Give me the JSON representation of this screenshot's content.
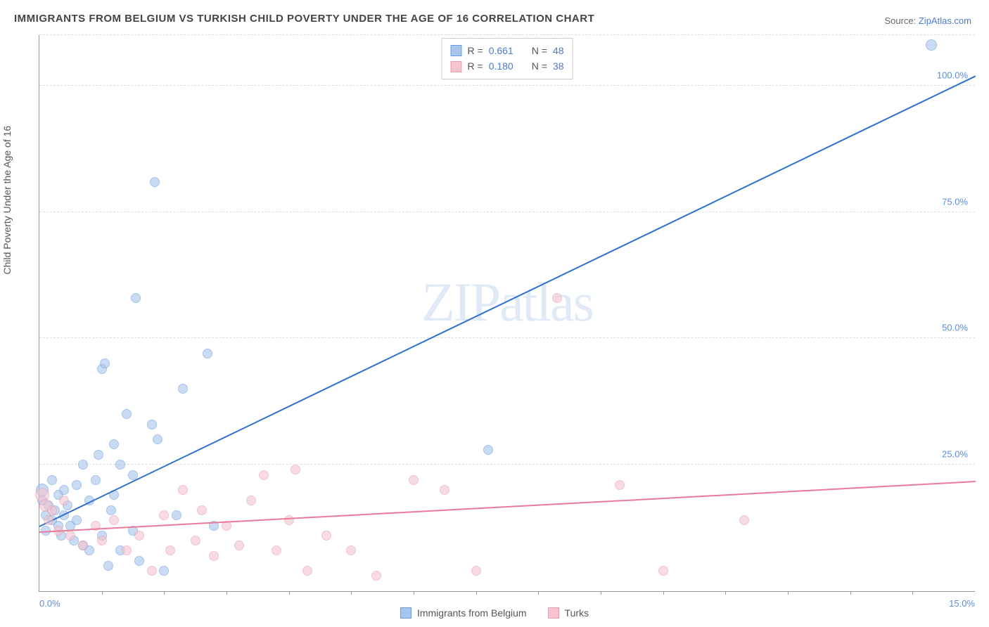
{
  "title": "IMMIGRANTS FROM BELGIUM VS TURKISH CHILD POVERTY UNDER THE AGE OF 16 CORRELATION CHART",
  "source_label": "Source: ",
  "source_name": "ZipAtlas.com",
  "ylabel": "Child Poverty Under the Age of 16",
  "watermark": "ZIPatlas",
  "chart": {
    "type": "scatter",
    "xlim": [
      0,
      15
    ],
    "ylim": [
      0,
      110
    ],
    "x_ticks_minor": [
      1,
      2,
      3,
      4,
      5,
      6,
      7,
      8,
      9,
      10,
      11,
      12,
      13,
      14
    ],
    "x_tick_labels": [
      {
        "pos": 0,
        "label": "0.0%"
      },
      {
        "pos": 15,
        "label": "15.0%"
      }
    ],
    "y_gridlines": [
      25,
      50,
      75,
      100,
      110
    ],
    "y_tick_labels": [
      {
        "pos": 25,
        "label": "25.0%"
      },
      {
        "pos": 50,
        "label": "50.0%"
      },
      {
        "pos": 75,
        "label": "75.0%"
      },
      {
        "pos": 100,
        "label": "100.0%"
      }
    ],
    "background_color": "#ffffff",
    "grid_color": "#dddddd",
    "axis_color": "#999999",
    "tick_label_color": "#5b8dd6"
  },
  "series": [
    {
      "name": "Immigrants from Belgium",
      "marker_fill": "#a8c5ec",
      "marker_stroke": "#6a9bd8",
      "marker_opacity": 0.6,
      "line_color": "#2e6fd0",
      "R": "0.661",
      "N": "48",
      "trend": {
        "x1": 0,
        "y1": 13,
        "x2": 15,
        "y2": 102
      },
      "points": [
        {
          "x": 0.05,
          "y": 18,
          "r": 7
        },
        {
          "x": 0.05,
          "y": 20,
          "r": 9
        },
        {
          "x": 0.1,
          "y": 15,
          "r": 7
        },
        {
          "x": 0.1,
          "y": 12,
          "r": 7
        },
        {
          "x": 0.15,
          "y": 17,
          "r": 7
        },
        {
          "x": 0.2,
          "y": 14,
          "r": 7
        },
        {
          "x": 0.2,
          "y": 22,
          "r": 7
        },
        {
          "x": 0.25,
          "y": 16,
          "r": 7
        },
        {
          "x": 0.3,
          "y": 13,
          "r": 7
        },
        {
          "x": 0.3,
          "y": 19,
          "r": 7
        },
        {
          "x": 0.35,
          "y": 11,
          "r": 7
        },
        {
          "x": 0.4,
          "y": 15,
          "r": 7
        },
        {
          "x": 0.4,
          "y": 20,
          "r": 7
        },
        {
          "x": 0.45,
          "y": 17,
          "r": 7
        },
        {
          "x": 0.5,
          "y": 13,
          "r": 7
        },
        {
          "x": 0.55,
          "y": 10,
          "r": 7
        },
        {
          "x": 0.6,
          "y": 21,
          "r": 7
        },
        {
          "x": 0.6,
          "y": 14,
          "r": 7
        },
        {
          "x": 0.7,
          "y": 9,
          "r": 7
        },
        {
          "x": 0.7,
          "y": 25,
          "r": 7
        },
        {
          "x": 0.8,
          "y": 18,
          "r": 7
        },
        {
          "x": 0.8,
          "y": 8,
          "r": 7
        },
        {
          "x": 0.9,
          "y": 22,
          "r": 7
        },
        {
          "x": 0.95,
          "y": 27,
          "r": 7
        },
        {
          "x": 1.0,
          "y": 11,
          "r": 7
        },
        {
          "x": 1.0,
          "y": 44,
          "r": 7
        },
        {
          "x": 1.05,
          "y": 45,
          "r": 7
        },
        {
          "x": 1.1,
          "y": 5,
          "r": 7
        },
        {
          "x": 1.15,
          "y": 16,
          "r": 7
        },
        {
          "x": 1.2,
          "y": 29,
          "r": 7
        },
        {
          "x": 1.2,
          "y": 19,
          "r": 7
        },
        {
          "x": 1.3,
          "y": 8,
          "r": 7
        },
        {
          "x": 1.3,
          "y": 25,
          "r": 7
        },
        {
          "x": 1.4,
          "y": 35,
          "r": 7
        },
        {
          "x": 1.5,
          "y": 12,
          "r": 7
        },
        {
          "x": 1.5,
          "y": 23,
          "r": 7
        },
        {
          "x": 1.55,
          "y": 58,
          "r": 7
        },
        {
          "x": 1.6,
          "y": 6,
          "r": 7
        },
        {
          "x": 1.8,
          "y": 33,
          "r": 7
        },
        {
          "x": 1.85,
          "y": 81,
          "r": 7
        },
        {
          "x": 1.9,
          "y": 30,
          "r": 7
        },
        {
          "x": 2.0,
          "y": 4,
          "r": 7
        },
        {
          "x": 2.2,
          "y": 15,
          "r": 7
        },
        {
          "x": 2.3,
          "y": 40,
          "r": 7
        },
        {
          "x": 2.7,
          "y": 47,
          "r": 7
        },
        {
          "x": 2.8,
          "y": 13,
          "r": 7
        },
        {
          "x": 7.2,
          "y": 28,
          "r": 7
        },
        {
          "x": 14.3,
          "y": 108,
          "r": 8
        }
      ]
    },
    {
      "name": "Turks",
      "marker_fill": "#f5c4d0",
      "marker_stroke": "#e89db0",
      "marker_opacity": 0.6,
      "line_color": "#e97a9a",
      "R": "0.180",
      "N": "38",
      "trend": {
        "x1": 0,
        "y1": 12,
        "x2": 15,
        "y2": 22
      },
      "points": [
        {
          "x": 0.05,
          "y": 19,
          "r": 10
        },
        {
          "x": 0.1,
          "y": 17,
          "r": 9
        },
        {
          "x": 0.15,
          "y": 14,
          "r": 7
        },
        {
          "x": 0.2,
          "y": 16,
          "r": 7
        },
        {
          "x": 0.3,
          "y": 12,
          "r": 7
        },
        {
          "x": 0.4,
          "y": 18,
          "r": 7
        },
        {
          "x": 0.5,
          "y": 11,
          "r": 7
        },
        {
          "x": 0.7,
          "y": 9,
          "r": 7
        },
        {
          "x": 0.9,
          "y": 13,
          "r": 7
        },
        {
          "x": 1.0,
          "y": 10,
          "r": 7
        },
        {
          "x": 1.2,
          "y": 14,
          "r": 7
        },
        {
          "x": 1.4,
          "y": 8,
          "r": 7
        },
        {
          "x": 1.6,
          "y": 11,
          "r": 7
        },
        {
          "x": 1.8,
          "y": 4,
          "r": 7
        },
        {
          "x": 2.0,
          "y": 15,
          "r": 7
        },
        {
          "x": 2.1,
          "y": 8,
          "r": 7
        },
        {
          "x": 2.3,
          "y": 20,
          "r": 7
        },
        {
          "x": 2.5,
          "y": 10,
          "r": 7
        },
        {
          "x": 2.6,
          "y": 16,
          "r": 7
        },
        {
          "x": 2.8,
          "y": 7,
          "r": 7
        },
        {
          "x": 3.0,
          "y": 13,
          "r": 7
        },
        {
          "x": 3.2,
          "y": 9,
          "r": 7
        },
        {
          "x": 3.4,
          "y": 18,
          "r": 7
        },
        {
          "x": 3.6,
          "y": 23,
          "r": 7
        },
        {
          "x": 3.8,
          "y": 8,
          "r": 7
        },
        {
          "x": 4.0,
          "y": 14,
          "r": 7
        },
        {
          "x": 4.1,
          "y": 24,
          "r": 7
        },
        {
          "x": 4.3,
          "y": 4,
          "r": 7
        },
        {
          "x": 4.6,
          "y": 11,
          "r": 7
        },
        {
          "x": 5.0,
          "y": 8,
          "r": 7
        },
        {
          "x": 5.4,
          "y": 3,
          "r": 7
        },
        {
          "x": 6.0,
          "y": 22,
          "r": 7
        },
        {
          "x": 6.5,
          "y": 20,
          "r": 7
        },
        {
          "x": 7.0,
          "y": 4,
          "r": 7
        },
        {
          "x": 8.3,
          "y": 58,
          "r": 7
        },
        {
          "x": 9.3,
          "y": 21,
          "r": 7
        },
        {
          "x": 10.0,
          "y": 4,
          "r": 7
        },
        {
          "x": 11.3,
          "y": 14,
          "r": 7
        }
      ]
    }
  ],
  "legend_stats": {
    "r_label": "R =",
    "n_label": "N ="
  },
  "legend_bottom": [
    {
      "label": "Immigrants from Belgium",
      "fill": "#a8c5ec",
      "stroke": "#6a9bd8"
    },
    {
      "label": "Turks",
      "fill": "#f5c4d0",
      "stroke": "#e89db0"
    }
  ]
}
